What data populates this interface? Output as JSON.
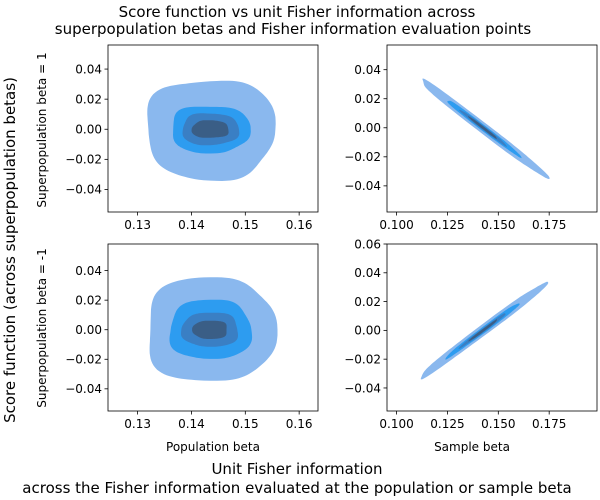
{
  "chart_data": {
    "type": "kde_contour_grid",
    "title_line1": "Score function vs unit Fisher information across",
    "title_line2": "superpopulation betas and Fisher information evaluation points",
    "supxlabel_line1": "Unit Fisher information",
    "supxlabel_line2": "across the Fisher information evaluated at the population or sample beta",
    "supylabel": "Score function (across superpopulation betas)",
    "row_labels": [
      "Superpopulation beta = 1",
      "Superpopulation beta = -1"
    ],
    "col_labels": [
      "Population beta",
      "Sample beta"
    ],
    "colors": {
      "level1": "#8ab8ee",
      "level2": "#2d9cf0",
      "level3": "#3a7fc4",
      "level4": "#3a5e86"
    },
    "panels": [
      {
        "id": "r1c1",
        "xticks": [
          "0.13",
          "0.14",
          "0.15",
          "0.16"
        ],
        "xtick_values": [
          0.13,
          0.14,
          0.15,
          0.16
        ],
        "yticks": [
          "0.04",
          "0.02",
          "0.00",
          "−0.02",
          "−0.04"
        ],
        "ytick_values": [
          0.04,
          0.02,
          0.0,
          -0.02,
          -0.04
        ],
        "xlim": [
          0.1245,
          0.1635
        ],
        "ylim": [
          -0.055,
          0.056
        ],
        "center": [
          0.1435,
          0.0
        ],
        "slope": 0,
        "levels": [
          {
            "hx": 0.0118,
            "hy": 0.033,
            "color": "level1"
          },
          {
            "hx": 0.0072,
            "hy": 0.0155,
            "color": "level2"
          },
          {
            "hx": 0.0052,
            "hy": 0.0105,
            "color": "level3"
          },
          {
            "hx": 0.0034,
            "hy": 0.0058,
            "color": "level4"
          }
        ]
      },
      {
        "id": "r1c2",
        "xticks": [
          "0.100",
          "0.125",
          "0.150",
          "0.175"
        ],
        "xtick_values": [
          0.1,
          0.125,
          0.15,
          0.175
        ],
        "yticks": [
          "0.04",
          "0.02",
          "0.00",
          "−0.02",
          "−0.04"
        ],
        "ytick_values": [
          0.04,
          0.02,
          0.0,
          -0.02,
          -0.04
        ],
        "xlim": [
          0.0953,
          0.1985
        ],
        "ylim": [
          -0.058,
          0.057
        ],
        "center": [
          0.1425,
          0.0
        ],
        "slope": -1.07,
        "levels": [
          {
            "hx": 0.031,
            "hy": 0.0045,
            "color": "level1"
          },
          {
            "hx": 0.018,
            "hy": 0.0025,
            "color": "level2"
          },
          {
            "hx": 0.0115,
            "hy": 0.0016,
            "color": "level3"
          },
          {
            "hx": 0.007,
            "hy": 0.0011,
            "color": "level4"
          }
        ]
      },
      {
        "id": "r2c1",
        "xticks": [
          "0.13",
          "0.14",
          "0.15",
          "0.16"
        ],
        "xtick_values": [
          0.13,
          0.14,
          0.15,
          0.16
        ],
        "yticks": [
          "0.04",
          "0.02",
          "0.00",
          "−0.02",
          "−0.04"
        ],
        "ytick_values": [
          0.04,
          0.02,
          0.0,
          -0.02,
          -0.04
        ],
        "xlim": [
          0.1245,
          0.1635
        ],
        "ylim": [
          -0.055,
          0.058
        ],
        "center": [
          0.1435,
          0.0
        ],
        "slope": 0,
        "levels": [
          {
            "hx": 0.0118,
            "hy": 0.035,
            "color": "level1"
          },
          {
            "hx": 0.0075,
            "hy": 0.02,
            "color": "level2"
          },
          {
            "hx": 0.0052,
            "hy": 0.0115,
            "color": "level3"
          },
          {
            "hx": 0.0032,
            "hy": 0.0062,
            "color": "level4"
          }
        ]
      },
      {
        "id": "r2c2",
        "xticks": [
          "0.100",
          "0.125",
          "0.150",
          "0.175"
        ],
        "xtick_values": [
          0.1,
          0.125,
          0.15,
          0.175
        ],
        "yticks": [
          "0.06",
          "0.04",
          "0.02",
          "0.00",
          "−0.02",
          "−0.04"
        ],
        "ytick_values": [
          0.06,
          0.04,
          0.02,
          0.0,
          -0.02,
          -0.04
        ],
        "xlim": [
          0.0953,
          0.1985
        ],
        "ylim": [
          -0.056,
          0.06
        ],
        "center": [
          0.1425,
          0.0
        ],
        "slope": 1.05,
        "levels": [
          {
            "hx": 0.031,
            "hy": 0.0045,
            "color": "level1"
          },
          {
            "hx": 0.018,
            "hy": 0.0025,
            "color": "level2"
          },
          {
            "hx": 0.0115,
            "hy": 0.0016,
            "color": "level3"
          },
          {
            "hx": 0.007,
            "hy": 0.0011,
            "color": "level4"
          }
        ]
      }
    ]
  }
}
